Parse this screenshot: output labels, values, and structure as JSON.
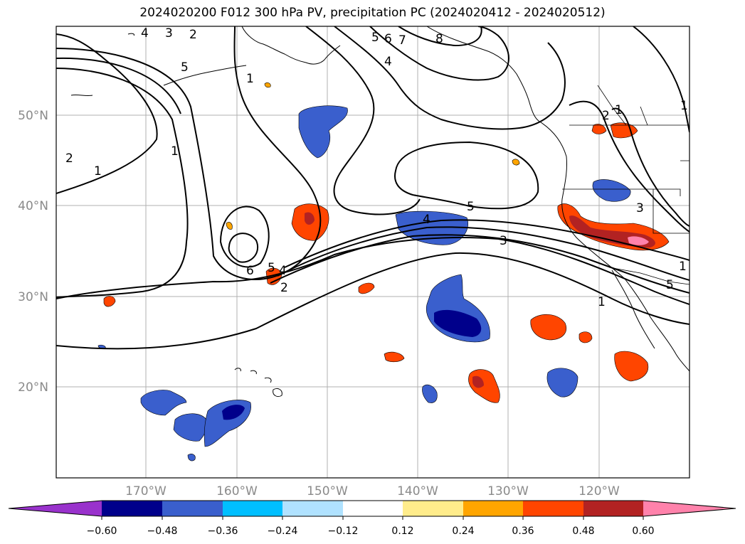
{
  "title": "2024020200 F012 300 hPa PV, precipitation PC (2024020412 - 2024020512)",
  "map": {
    "lat_labels": [
      "50°N",
      "40°N",
      "30°N",
      "20°N"
    ],
    "lon_labels": [
      "170°W",
      "160°W",
      "150°W",
      "140°W",
      "130°W",
      "120°W"
    ],
    "contour_labels": [
      "4",
      "3",
      "2",
      "5",
      "1",
      "5",
      "6",
      "7",
      "8",
      "4",
      "2",
      "1",
      "1",
      "2",
      "1",
      "1",
      "5",
      "4",
      "3",
      "6",
      "5",
      "4",
      "2",
      "3",
      "1",
      "5",
      "1"
    ]
  },
  "colorbar": {
    "ticks": [
      "−0.60",
      "−0.48",
      "−0.36",
      "−0.24",
      "−0.12",
      "0.12",
      "0.24",
      "0.36",
      "0.48",
      "0.60"
    ],
    "colors": [
      "#9932cc",
      "#00008b",
      "#3a5fcd",
      "#00bfff",
      "#b0e2ff",
      "#ffffff",
      "#ffec8b",
      "#ffa500",
      "#ff4500",
      "#b22222",
      "#ff82ab"
    ]
  },
  "colors": {
    "gridline": "#b0b0b0",
    "contour": "#000000",
    "coast": "#000000"
  }
}
